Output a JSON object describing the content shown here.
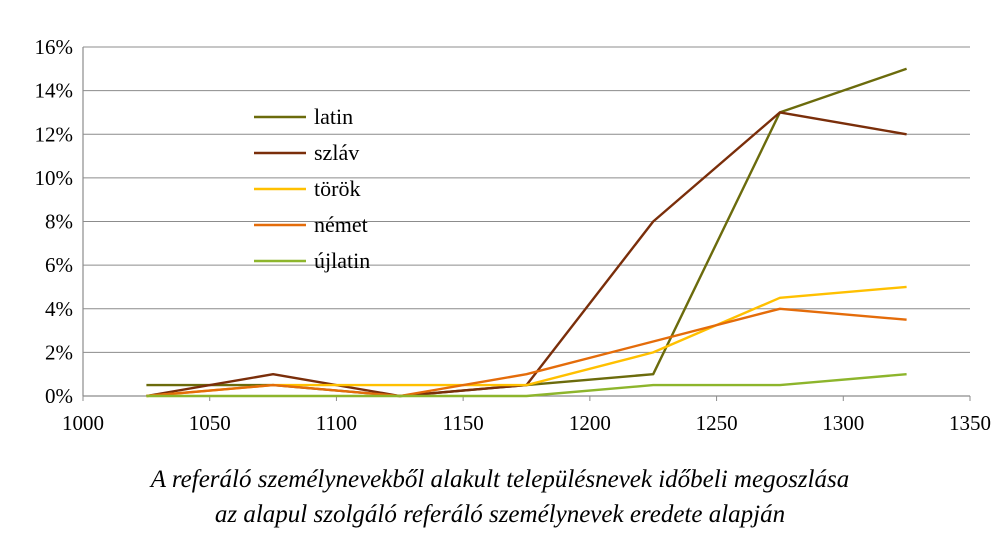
{
  "chart_data": {
    "type": "line",
    "x": [
      1025,
      1075,
      1125,
      1175,
      1225,
      1275,
      1325
    ],
    "xlim": [
      1000,
      1350
    ],
    "xticks": [
      "1000",
      "1050",
      "1100",
      "1150",
      "1200",
      "1250",
      "1300",
      "1350"
    ],
    "ylim": [
      0,
      16
    ],
    "yticks": [
      "0%",
      "2%",
      "4%",
      "6%",
      "8%",
      "10%",
      "12%",
      "14%",
      "16%"
    ],
    "grid": true,
    "legend_position": "top-left",
    "series": [
      {
        "name": "latin",
        "color": "#6b6b0c",
        "values": [
          0.5,
          0.5,
          0,
          0.5,
          1,
          13,
          15
        ]
      },
      {
        "name": "szláv",
        "color": "#7a2e0a",
        "values": [
          0,
          1,
          0,
          0.5,
          8,
          13,
          12
        ]
      },
      {
        "name": "török",
        "color": "#ffc000",
        "values": [
          0,
          0.5,
          0.5,
          0.5,
          2,
          4.5,
          5
        ]
      },
      {
        "name": "német",
        "color": "#e46c0a",
        "values": [
          0,
          0.5,
          0,
          1,
          2.5,
          4,
          3.5
        ]
      },
      {
        "name": "újlatin",
        "color": "#8db52c",
        "values": [
          0,
          0,
          0,
          0,
          0.5,
          0.5,
          1
        ]
      }
    ],
    "caption": [
      "A referáló személynevekből alakult településnevek időbeli megoszlása",
      "az alapul szolgáló referáló személynevek eredete alapján"
    ]
  }
}
